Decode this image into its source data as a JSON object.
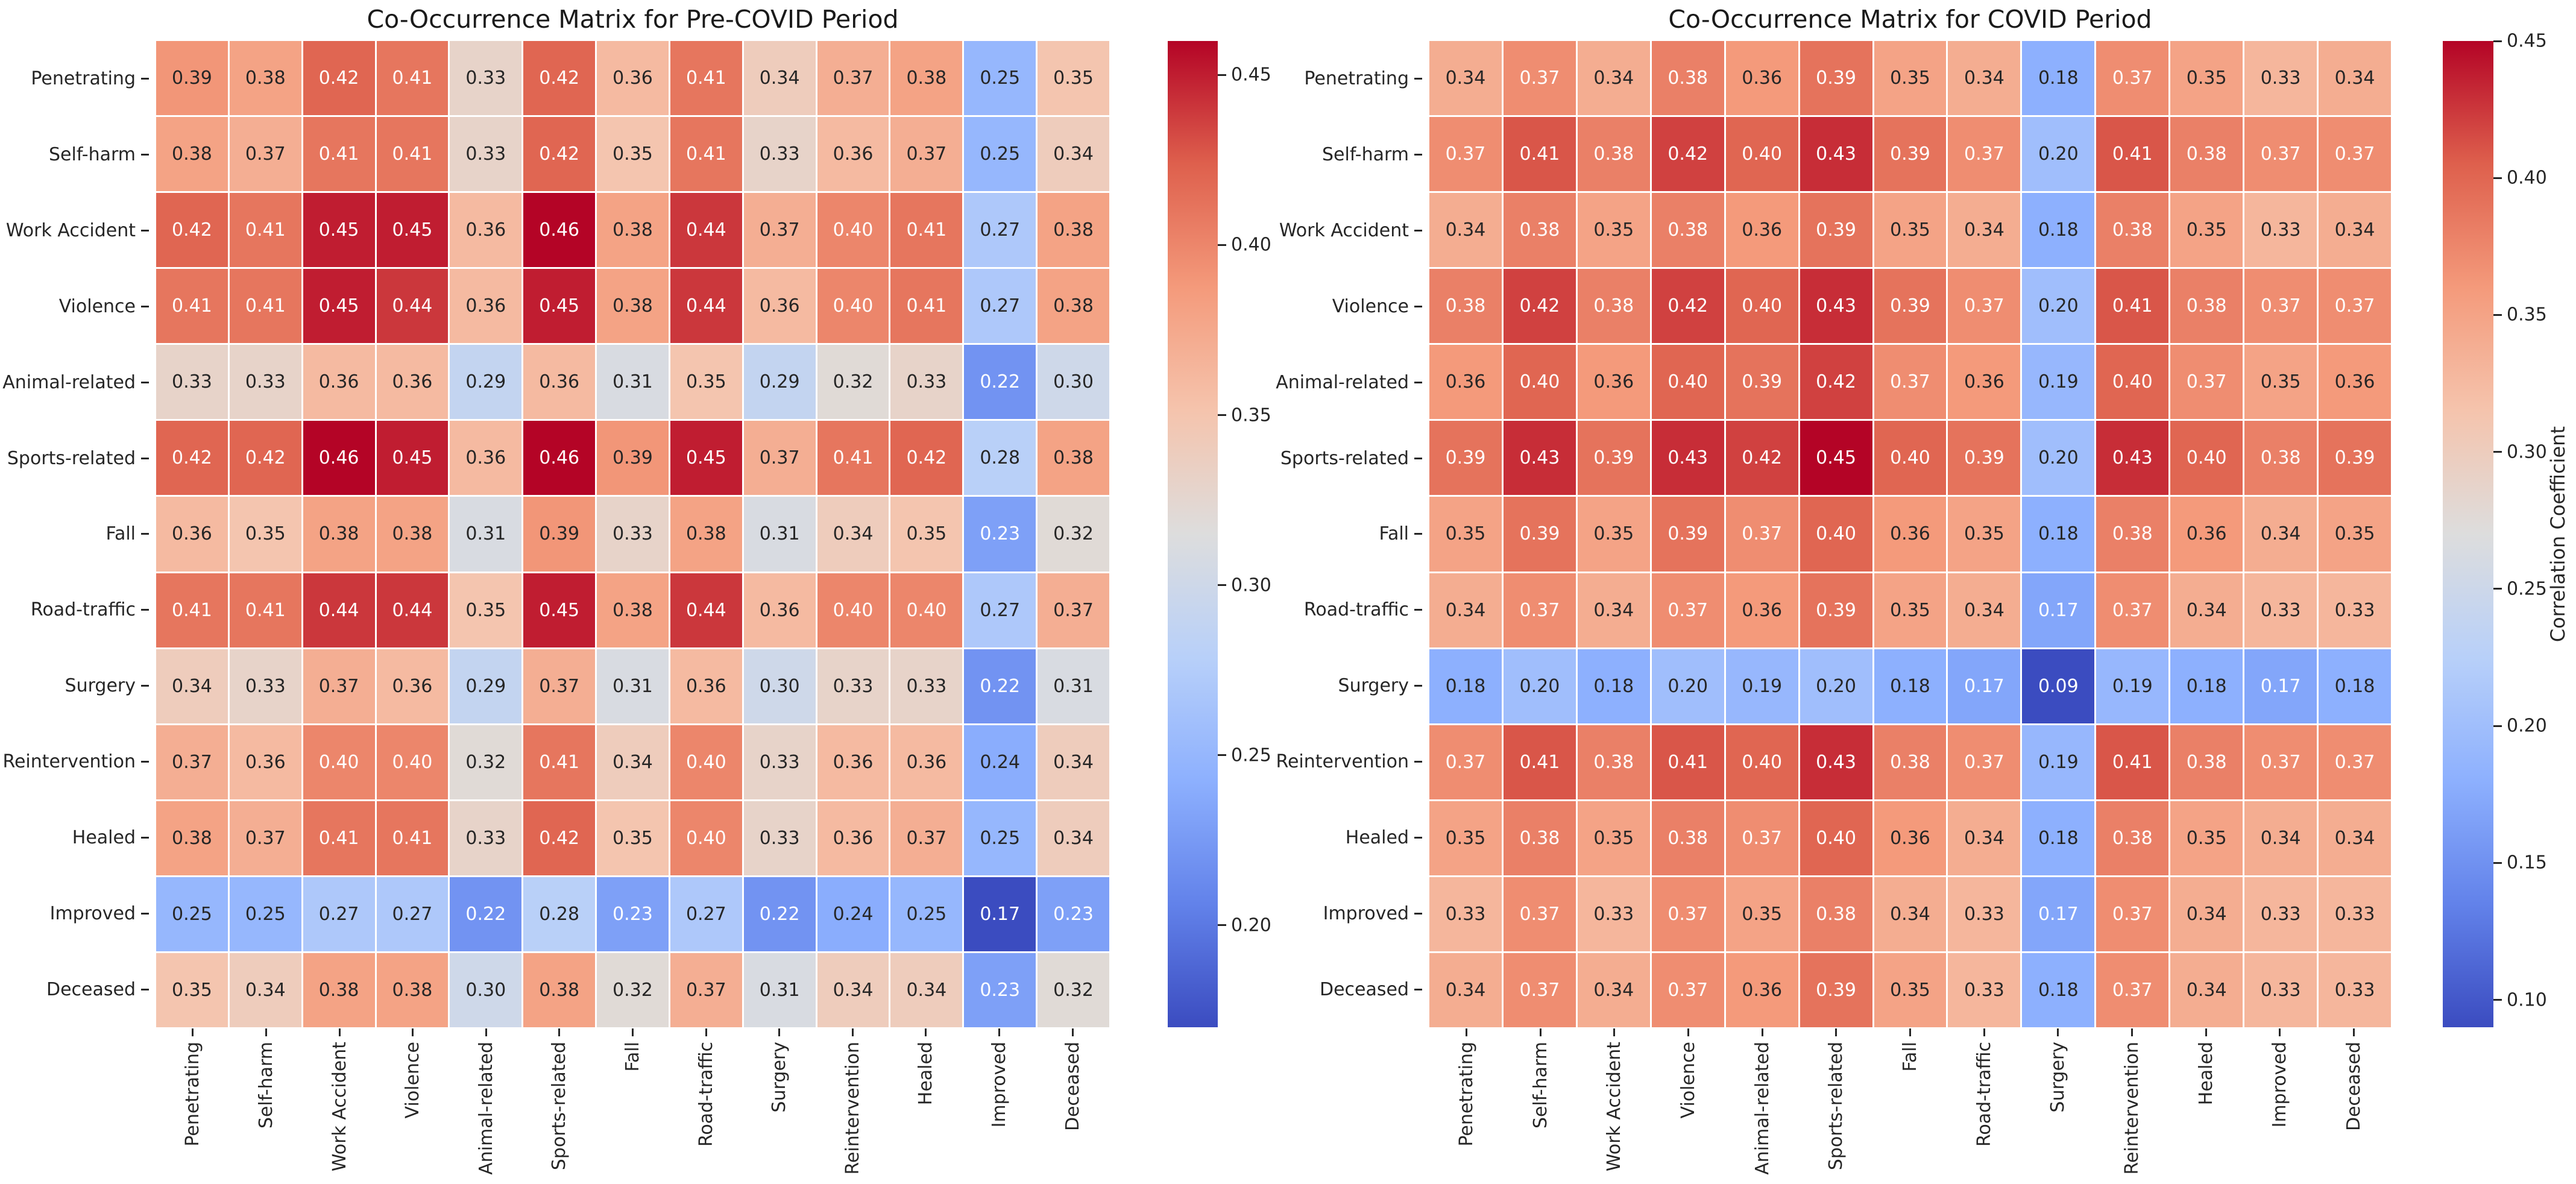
{
  "page": {
    "background": "#ffffff"
  },
  "colormap": {
    "name": "coolwarm",
    "stops": [
      [
        59,
        76,
        192
      ],
      [
        98,
        130,
        234
      ],
      [
        141,
        176,
        254
      ],
      [
        184,
        208,
        249
      ],
      [
        221,
        221,
        221
      ],
      [
        245,
        196,
        173
      ],
      [
        244,
        154,
        123
      ],
      [
        222,
        96,
        77
      ],
      [
        180,
        4,
        38
      ]
    ]
  },
  "annotation_colors": {
    "dark": "#262626",
    "light": "#ffffff"
  },
  "tick_color": "#262626",
  "chart_data": [
    {
      "type": "heatmap",
      "title": "Co-Occurrence Matrix for Pre-COVID Period",
      "categories": [
        "Penetrating",
        "Self-harm",
        "Work Accident",
        "Violence",
        "Animal-related",
        "Sports-related",
        "Fall",
        "Road-traffic",
        "Surgery",
        "Reintervention",
        "Healed",
        "Improved",
        "Deceased"
      ],
      "matrix": [
        [
          0.39,
          0.38,
          0.42,
          0.41,
          0.33,
          0.42,
          0.36,
          0.41,
          0.34,
          0.37,
          0.38,
          0.25,
          0.35
        ],
        [
          0.38,
          0.37,
          0.41,
          0.41,
          0.33,
          0.42,
          0.35,
          0.41,
          0.33,
          0.36,
          0.37,
          0.25,
          0.34
        ],
        [
          0.42,
          0.41,
          0.45,
          0.45,
          0.36,
          0.46,
          0.38,
          0.44,
          0.37,
          0.4,
          0.41,
          0.27,
          0.38
        ],
        [
          0.41,
          0.41,
          0.45,
          0.44,
          0.36,
          0.45,
          0.38,
          0.44,
          0.36,
          0.4,
          0.41,
          0.27,
          0.38
        ],
        [
          0.33,
          0.33,
          0.36,
          0.36,
          0.29,
          0.36,
          0.31,
          0.35,
          0.29,
          0.32,
          0.33,
          0.22,
          0.3
        ],
        [
          0.42,
          0.42,
          0.46,
          0.45,
          0.36,
          0.46,
          0.39,
          0.45,
          0.37,
          0.41,
          0.42,
          0.28,
          0.38
        ],
        [
          0.36,
          0.35,
          0.38,
          0.38,
          0.31,
          0.39,
          0.33,
          0.38,
          0.31,
          0.34,
          0.35,
          0.23,
          0.32
        ],
        [
          0.41,
          0.41,
          0.44,
          0.44,
          0.35,
          0.45,
          0.38,
          0.44,
          0.36,
          0.4,
          0.4,
          0.27,
          0.37
        ],
        [
          0.34,
          0.33,
          0.37,
          0.36,
          0.29,
          0.37,
          0.31,
          0.36,
          0.3,
          0.33,
          0.33,
          0.22,
          0.31
        ],
        [
          0.37,
          0.36,
          0.4,
          0.4,
          0.32,
          0.41,
          0.34,
          0.4,
          0.33,
          0.36,
          0.36,
          0.24,
          0.34
        ],
        [
          0.38,
          0.37,
          0.41,
          0.41,
          0.33,
          0.42,
          0.35,
          0.4,
          0.33,
          0.36,
          0.37,
          0.25,
          0.34
        ],
        [
          0.25,
          0.25,
          0.27,
          0.27,
          0.22,
          0.28,
          0.23,
          0.27,
          0.22,
          0.24,
          0.25,
          0.17,
          0.23
        ],
        [
          0.35,
          0.34,
          0.38,
          0.38,
          0.3,
          0.38,
          0.32,
          0.37,
          0.31,
          0.34,
          0.34,
          0.23,
          0.32
        ]
      ],
      "vmin": 0.17,
      "vmax": 0.46,
      "value_decimals": 2,
      "colorbar": {
        "ticks": [
          0.45,
          0.4,
          0.35,
          0.3,
          0.25,
          0.2
        ],
        "label": ""
      }
    },
    {
      "type": "heatmap",
      "title": "Co-Occurrence Matrix for COVID Period",
      "categories": [
        "Penetrating",
        "Self-harm",
        "Work Accident",
        "Violence",
        "Animal-related",
        "Sports-related",
        "Fall",
        "Road-traffic",
        "Surgery",
        "Reintervention",
        "Healed",
        "Improved",
        "Deceased"
      ],
      "matrix": [
        [
          0.34,
          0.37,
          0.34,
          0.38,
          0.36,
          0.39,
          0.35,
          0.34,
          0.18,
          0.37,
          0.35,
          0.33,
          0.34
        ],
        [
          0.37,
          0.41,
          0.38,
          0.42,
          0.4,
          0.43,
          0.39,
          0.37,
          0.2,
          0.41,
          0.38,
          0.37,
          0.37
        ],
        [
          0.34,
          0.38,
          0.35,
          0.38,
          0.36,
          0.39,
          0.35,
          0.34,
          0.18,
          0.38,
          0.35,
          0.33,
          0.34
        ],
        [
          0.38,
          0.42,
          0.38,
          0.42,
          0.4,
          0.43,
          0.39,
          0.37,
          0.2,
          0.41,
          0.38,
          0.37,
          0.37
        ],
        [
          0.36,
          0.4,
          0.36,
          0.4,
          0.39,
          0.42,
          0.37,
          0.36,
          0.19,
          0.4,
          0.37,
          0.35,
          0.36
        ],
        [
          0.39,
          0.43,
          0.39,
          0.43,
          0.42,
          0.45,
          0.4,
          0.39,
          0.2,
          0.43,
          0.4,
          0.38,
          0.39
        ],
        [
          0.35,
          0.39,
          0.35,
          0.39,
          0.37,
          0.4,
          0.36,
          0.35,
          0.18,
          0.38,
          0.36,
          0.34,
          0.35
        ],
        [
          0.34,
          0.37,
          0.34,
          0.37,
          0.36,
          0.39,
          0.35,
          0.34,
          0.17,
          0.37,
          0.34,
          0.33,
          0.33
        ],
        [
          0.18,
          0.2,
          0.18,
          0.2,
          0.19,
          0.2,
          0.18,
          0.17,
          0.09,
          0.19,
          0.18,
          0.17,
          0.18
        ],
        [
          0.37,
          0.41,
          0.38,
          0.41,
          0.4,
          0.43,
          0.38,
          0.37,
          0.19,
          0.41,
          0.38,
          0.37,
          0.37
        ],
        [
          0.35,
          0.38,
          0.35,
          0.38,
          0.37,
          0.4,
          0.36,
          0.34,
          0.18,
          0.38,
          0.35,
          0.34,
          0.34
        ],
        [
          0.33,
          0.37,
          0.33,
          0.37,
          0.35,
          0.38,
          0.34,
          0.33,
          0.17,
          0.37,
          0.34,
          0.33,
          0.33
        ],
        [
          0.34,
          0.37,
          0.34,
          0.37,
          0.36,
          0.39,
          0.35,
          0.33,
          0.18,
          0.37,
          0.34,
          0.33,
          0.33
        ]
      ],
      "vmin": 0.09,
      "vmax": 0.45,
      "value_decimals": 2,
      "colorbar": {
        "ticks": [
          0.45,
          0.4,
          0.35,
          0.3,
          0.25,
          0.2,
          0.15,
          0.1
        ],
        "label": "Correlation Coefficient"
      }
    }
  ]
}
